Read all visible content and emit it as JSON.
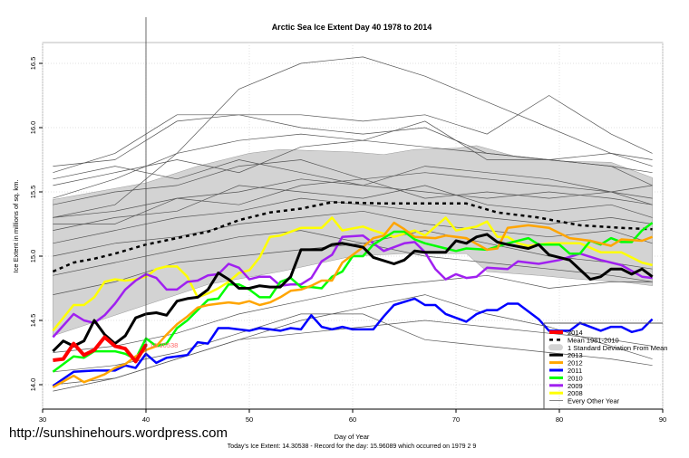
{
  "watermark": "http://sunshinehours.wordpress.com",
  "chart_data": {
    "type": "line",
    "title": "Arctic Sea Ice Extent Day 40 1978 to 2014",
    "xlabel": "Day of Year",
    "ylabel": "Ice Extent in millions of sq. km.",
    "subtitle": "Today's Ice Extent: 14.30538  - Record for the day: 15.96089 which occurred on 1979 2 9",
    "xlim": [
      30,
      90
    ],
    "ylim": [
      13.9,
      16.6
    ],
    "xticks": [
      30,
      40,
      50,
      60,
      70,
      80,
      90
    ],
    "yticks": [
      "14.0",
      "14.5",
      "15.0",
      "15.5",
      "16.0",
      "16.5"
    ],
    "grid": true,
    "legend_position": "bottom-right",
    "marker_day": 40,
    "today_label": "14.30538",
    "sd_band": {
      "name": "1 Standard Deviation From Mean",
      "color": "#d3d3d3",
      "upper": {
        "x": [
          31,
          40,
          45,
          50,
          53,
          60,
          63,
          66,
          70,
          72,
          76,
          80,
          85,
          89
        ],
        "y": [
          15.44,
          15.57,
          15.7,
          15.8,
          15.83,
          15.81,
          15.79,
          15.83,
          15.84,
          15.86,
          15.77,
          15.74,
          15.73,
          15.61
        ]
      },
      "lower": {
        "x": [
          31,
          40,
          46,
          53,
          60,
          65,
          71,
          73,
          78,
          82,
          86,
          89
        ],
        "y": [
          14.38,
          14.62,
          14.78,
          14.88,
          15.0,
          15.02,
          15.02,
          14.88,
          14.85,
          14.82,
          14.8,
          14.77
        ]
      }
    },
    "mean": {
      "name": "Mean 1981-2010",
      "color": "#000000",
      "x": [
        31,
        33,
        35,
        37,
        40,
        43,
        46,
        49,
        52,
        55,
        58,
        63,
        67,
        71,
        74,
        78,
        82,
        86,
        89
      ],
      "y": [
        14.88,
        14.95,
        14.98,
        15.02,
        15.09,
        15.14,
        15.19,
        15.28,
        15.34,
        15.37,
        15.42,
        15.41,
        15.41,
        15.41,
        15.34,
        15.3,
        15.24,
        15.22,
        15.21
      ]
    },
    "series": [
      {
        "name": "2014",
        "color": "#ff0000",
        "width": 4,
        "x": [
          31,
          32,
          33,
          34,
          35,
          36,
          37,
          38,
          39,
          40
        ],
        "y": [
          14.19,
          14.2,
          14.32,
          14.23,
          14.27,
          14.37,
          14.3,
          14.28,
          14.18,
          14.31
        ]
      },
      {
        "name": "2013",
        "color": "#000000",
        "width": 3,
        "x": [
          31,
          32,
          33,
          34,
          35,
          36,
          37,
          38,
          39,
          40,
          41,
          42,
          43,
          44,
          45,
          46,
          47,
          48,
          49,
          50,
          51,
          52,
          53,
          54,
          55,
          56,
          57,
          58,
          59,
          61,
          62,
          64,
          65,
          66,
          67,
          69,
          70,
          71,
          72,
          73,
          74,
          75,
          77,
          78,
          79,
          81,
          83,
          84,
          85,
          86,
          87,
          88,
          89
        ],
        "y": [
          14.26,
          14.34,
          14.3,
          14.34,
          14.5,
          14.39,
          14.32,
          14.38,
          14.52,
          14.55,
          14.56,
          14.54,
          14.65,
          14.67,
          14.68,
          14.74,
          14.87,
          14.82,
          14.75,
          14.75,
          14.77,
          14.76,
          14.76,
          14.84,
          15.05,
          15.05,
          15.05,
          15.09,
          15.1,
          15.07,
          14.99,
          14.94,
          14.97,
          15.04,
          15.03,
          15.03,
          15.12,
          15.1,
          15.15,
          15.17,
          15.11,
          15.09,
          15.06,
          15.09,
          15.01,
          14.97,
          14.82,
          14.84,
          14.9,
          14.9,
          14.86,
          14.9,
          14.84
        ]
      },
      {
        "name": "2012",
        "color": "#ffa500",
        "width": 2.5,
        "x": [
          31,
          33,
          34,
          35,
          36,
          37,
          38,
          39,
          40,
          41,
          42,
          43,
          44,
          45,
          46,
          47,
          48,
          49,
          50,
          51,
          52,
          53,
          54,
          55,
          56,
          57,
          58,
          59,
          61,
          62,
          63,
          64,
          65,
          66,
          68,
          69,
          71,
          73,
          74,
          75,
          77,
          79,
          81,
          83,
          85,
          86,
          88,
          89
        ],
        "y": [
          13.98,
          14.07,
          14.02,
          14.05,
          14.08,
          14.13,
          14.16,
          14.22,
          14.27,
          14.3,
          14.39,
          14.47,
          14.53,
          14.6,
          14.62,
          14.63,
          14.64,
          14.63,
          14.65,
          14.62,
          14.64,
          14.68,
          14.73,
          14.74,
          14.77,
          14.81,
          14.81,
          14.95,
          15.07,
          15.14,
          15.16,
          15.26,
          15.21,
          15.15,
          15.14,
          15.16,
          15.14,
          15.05,
          15.06,
          15.22,
          15.24,
          15.22,
          15.14,
          15.12,
          15.08,
          15.13,
          15.12,
          15.15
        ]
      },
      {
        "name": "2011",
        "color": "#0000ff",
        "width": 2.5,
        "x": [
          31,
          33,
          35,
          37,
          38,
          39,
          40,
          41,
          42,
          44,
          45,
          46,
          47,
          48,
          50,
          51,
          52,
          53,
          54,
          55,
          56,
          57,
          58,
          59,
          60,
          61,
          62,
          63,
          64,
          66,
          67,
          68,
          69,
          71,
          72,
          73,
          74,
          75,
          76,
          78,
          79,
          81,
          82,
          84,
          85,
          86,
          87,
          88,
          89
        ],
        "y": [
          13.99,
          14.1,
          14.11,
          14.11,
          14.15,
          14.13,
          14.24,
          14.17,
          14.21,
          14.23,
          14.33,
          14.32,
          14.44,
          14.44,
          14.42,
          14.44,
          14.43,
          14.42,
          14.44,
          14.43,
          14.54,
          14.45,
          14.43,
          14.45,
          14.43,
          14.43,
          14.43,
          14.53,
          14.62,
          14.67,
          14.62,
          14.62,
          14.55,
          14.49,
          14.55,
          14.58,
          14.58,
          14.63,
          14.63,
          14.51,
          14.42,
          14.42,
          14.48,
          14.42,
          14.45,
          14.45,
          14.41,
          14.43,
          14.51
        ]
      },
      {
        "name": "2010",
        "color": "#00ff00",
        "width": 2.5,
        "x": [
          31,
          32,
          33,
          34,
          35,
          36,
          37,
          38,
          39,
          40,
          41,
          42,
          43,
          44,
          45,
          46,
          47,
          48,
          49,
          50,
          51,
          52,
          53,
          54,
          55,
          56,
          57,
          58,
          59,
          60,
          61,
          62,
          64,
          65,
          66,
          67,
          69,
          70,
          71,
          73,
          75,
          77,
          78,
          80,
          81,
          82,
          83,
          84,
          85,
          86,
          87,
          88,
          89
        ],
        "y": [
          14.1,
          14.16,
          14.22,
          14.21,
          14.26,
          14.26,
          14.26,
          14.24,
          14.2,
          14.36,
          14.3,
          14.32,
          14.44,
          14.5,
          14.58,
          14.66,
          14.67,
          14.78,
          14.78,
          14.74,
          14.68,
          14.68,
          14.8,
          14.83,
          14.76,
          14.76,
          14.75,
          14.84,
          14.88,
          15.0,
          15.0,
          15.09,
          15.19,
          15.19,
          15.13,
          15.1,
          15.06,
          15.04,
          15.06,
          15.05,
          15.1,
          15.14,
          15.09,
          15.09,
          15.02,
          15.02,
          15.12,
          15.09,
          15.14,
          15.11,
          15.11,
          15.2,
          15.26
        ]
      },
      {
        "name": "2009",
        "color": "#a020f0",
        "width": 2.5,
        "x": [
          31,
          33,
          34,
          35,
          36,
          37,
          38,
          39,
          40,
          41,
          42,
          43,
          44,
          45,
          46,
          47,
          48,
          49,
          50,
          51,
          52,
          53,
          54,
          55,
          56,
          57,
          58,
          59,
          61,
          62,
          63,
          65,
          66,
          67,
          68,
          69,
          70,
          71,
          72,
          73,
          75,
          76,
          78,
          80,
          82,
          84,
          86,
          88,
          89
        ],
        "y": [
          14.37,
          14.55,
          14.5,
          14.48,
          14.54,
          14.63,
          14.74,
          14.81,
          14.86,
          14.83,
          14.74,
          14.74,
          14.8,
          14.81,
          14.85,
          14.86,
          14.94,
          14.91,
          14.82,
          14.84,
          14.84,
          14.77,
          14.78,
          14.78,
          14.83,
          14.96,
          15.01,
          15.15,
          15.16,
          15.1,
          15.04,
          15.1,
          15.11,
          15.03,
          14.9,
          14.82,
          14.86,
          14.83,
          14.84,
          14.91,
          14.9,
          14.96,
          14.94,
          14.97,
          15.02,
          14.97,
          14.93,
          14.84,
          14.83
        ]
      },
      {
        "name": "2008",
        "color": "#ffff00",
        "width": 2.5,
        "x": [
          31,
          33,
          34,
          35,
          36,
          37,
          38,
          39,
          40,
          41,
          42,
          43,
          44,
          45,
          46,
          47,
          48,
          49,
          50,
          51,
          52,
          53,
          55,
          57,
          58,
          59,
          61,
          62,
          64,
          66,
          67,
          69,
          70,
          72,
          73,
          74,
          75,
          76,
          77,
          79,
          82,
          84,
          86,
          88,
          89
        ],
        "y": [
          14.42,
          14.62,
          14.62,
          14.68,
          14.8,
          14.82,
          14.81,
          14.82,
          14.84,
          14.9,
          14.92,
          14.92,
          14.84,
          14.68,
          14.71,
          14.75,
          14.8,
          14.87,
          14.89,
          14.99,
          15.15,
          15.16,
          15.22,
          15.22,
          15.3,
          15.2,
          15.23,
          15.2,
          15.15,
          15.2,
          15.16,
          15.3,
          15.2,
          15.23,
          15.27,
          15.15,
          15.15,
          15.1,
          15.08,
          15.1,
          15.1,
          15.03,
          15.03,
          14.95,
          14.93
        ]
      }
    ],
    "other_years": {
      "name": "Every Other Year",
      "color": "#555555",
      "x": [
        31,
        37,
        43,
        49,
        55,
        61,
        67,
        73,
        79,
        85,
        89
      ],
      "lines": [
        [
          15.3,
          15.4,
          15.8,
          16.3,
          16.5,
          16.55,
          16.4,
          16.2,
          16.0,
          15.8,
          15.7
        ],
        [
          15.7,
          15.75,
          16.05,
          16.1,
          16.1,
          16.05,
          16.1,
          15.95,
          16.25,
          15.95,
          15.8
        ],
        [
          15.65,
          15.8,
          16.1,
          16.1,
          16.0,
          15.95,
          16.0,
          15.8,
          15.75,
          15.8,
          15.75
        ],
        [
          15.45,
          15.6,
          15.8,
          15.9,
          15.95,
          15.9,
          16.05,
          15.75,
          15.75,
          15.7,
          15.55
        ],
        [
          15.55,
          15.65,
          15.75,
          15.65,
          15.85,
          15.9,
          15.85,
          15.8,
          15.75,
          15.7,
          15.65
        ],
        [
          15.4,
          15.5,
          15.55,
          15.7,
          15.75,
          15.6,
          15.65,
          15.6,
          15.55,
          15.5,
          15.45
        ],
        [
          15.3,
          15.35,
          15.45,
          15.5,
          15.6,
          15.55,
          15.5,
          15.45,
          15.5,
          15.45,
          15.4
        ],
        [
          15.2,
          15.3,
          15.35,
          15.55,
          15.5,
          15.45,
          15.55,
          15.4,
          15.35,
          15.4,
          15.3
        ],
        [
          15.1,
          15.2,
          15.3,
          15.35,
          15.45,
          15.4,
          15.35,
          15.3,
          15.25,
          15.3,
          15.25
        ],
        [
          15.0,
          15.1,
          15.15,
          15.25,
          15.3,
          15.35,
          15.25,
          15.2,
          15.15,
          15.2,
          15.1
        ],
        [
          14.85,
          14.95,
          15.05,
          15.15,
          15.2,
          15.1,
          15.2,
          15.1,
          15.0,
          14.95,
          14.9
        ],
        [
          14.7,
          14.8,
          14.95,
          15.0,
          15.05,
          15.1,
          15.0,
          14.95,
          14.9,
          14.85,
          14.8
        ],
        [
          14.25,
          14.3,
          14.4,
          14.55,
          14.65,
          14.75,
          14.8,
          14.85,
          14.75,
          14.8,
          14.8
        ],
        [
          14.0,
          14.05,
          14.2,
          14.35,
          14.5,
          14.6,
          14.7,
          14.55,
          14.45,
          14.3,
          14.2
        ],
        [
          13.95,
          14.05,
          14.2,
          14.35,
          14.4,
          14.45,
          14.5,
          14.45,
          14.4,
          14.35,
          14.3
        ],
        [
          14.1,
          14.15,
          14.25,
          14.4,
          14.55,
          14.55,
          14.35,
          14.3,
          14.25,
          14.2,
          14.15
        ],
        [
          15.6,
          15.7,
          15.6,
          15.75,
          15.65,
          15.55,
          15.7,
          15.65,
          15.6,
          15.5,
          15.4
        ],
        [
          15.25,
          15.25,
          15.45,
          15.4,
          15.55,
          15.6,
          15.45,
          15.5,
          15.45,
          15.5,
          15.55
        ]
      ]
    }
  }
}
